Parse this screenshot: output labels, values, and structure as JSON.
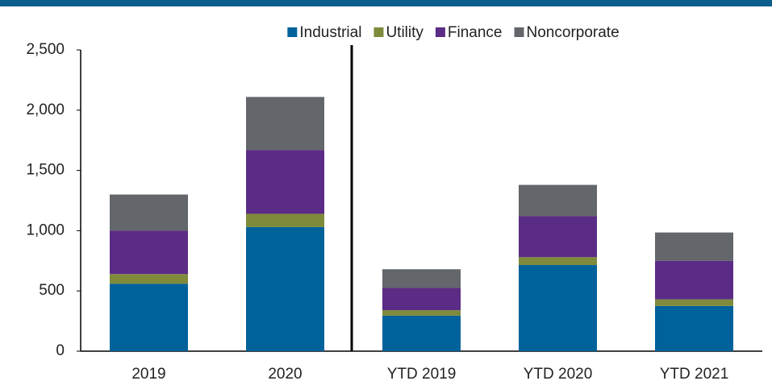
{
  "chart_data": {
    "type": "bar",
    "stacked": true,
    "categories": [
      "2019",
      "2020",
      "YTD 2019",
      "YTD 2020",
      "YTD 2021"
    ],
    "series": [
      {
        "name": "Industrial",
        "color": "#00629b",
        "values": [
          560,
          1030,
          295,
          715,
          375
        ]
      },
      {
        "name": "Utility",
        "color": "#7f8b3b",
        "values": [
          80,
          110,
          45,
          65,
          55
        ]
      },
      {
        "name": "Finance",
        "color": "#5b2c85",
        "values": [
          360,
          530,
          185,
          340,
          320
        ]
      },
      {
        "name": "Noncorporate",
        "color": "#63666a",
        "values": [
          300,
          440,
          155,
          260,
          235
        ]
      }
    ],
    "ylim": [
      0,
      2500
    ],
    "yticks": [
      0,
      500,
      {
        "value": 1000,
        "label": "1,000"
      },
      {
        "value": 1500,
        "label": "1,500"
      },
      {
        "value": 2000,
        "label": "2,000"
      },
      {
        "value": 2500,
        "label": "2,500"
      }
    ],
    "legend": "top"
  }
}
